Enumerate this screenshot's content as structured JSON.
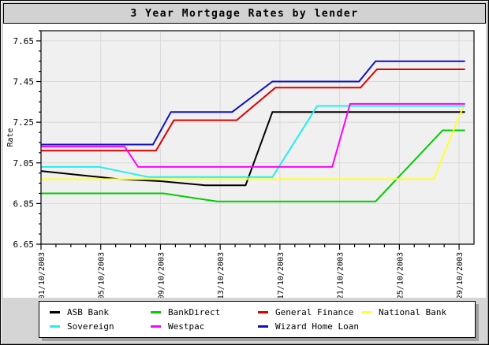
{
  "window": {
    "title": "3 Year Mortgage Rates by lender"
  },
  "chart_data": {
    "type": "line",
    "title": "3 Year Mortgage Rates by lender",
    "xlabel": "",
    "ylabel": "Rate",
    "ylim": [
      6.65,
      7.7
    ],
    "xlim": [
      1,
      30
    ],
    "yticks": [
      6.65,
      6.85,
      7.05,
      7.25,
      7.45,
      7.65
    ],
    "ytick_labels": [
      "6.65",
      "6.85",
      "7.05",
      "7.25",
      "7.45",
      "7.65"
    ],
    "xticks": [
      1,
      5,
      9,
      13,
      17,
      21,
      25,
      29
    ],
    "xtick_labels": [
      "01/10/2003",
      "05/10/2003",
      "09/10/2003",
      "13/10/2003",
      "17/10/2003",
      "21/10/2003",
      "25/10/2003",
      "29/10/2003"
    ],
    "x_minor_step": 1,
    "y_minor_step": 0.05,
    "grid": "major",
    "legend_position": "bottom",
    "plot_bg": "#f0f0f0",
    "grid_color": "#dadada",
    "axis_color": "#000000",
    "series": [
      {
        "name": "ASB Bank",
        "color": "#000000",
        "points": [
          [
            1,
            7.01
          ],
          [
            3.6,
            6.99
          ],
          [
            6.2,
            6.97
          ],
          [
            9,
            6.96
          ],
          [
            12,
            6.94
          ],
          [
            14.7,
            6.94
          ],
          [
            16.5,
            7.3
          ],
          [
            29.4,
            7.3
          ]
        ]
      },
      {
        "name": "BankDirect",
        "color": "#00cc00",
        "points": [
          [
            1,
            6.9
          ],
          [
            9.2,
            6.9
          ],
          [
            12.8,
            6.86
          ],
          [
            23.4,
            6.86
          ],
          [
            27.9,
            7.21
          ],
          [
            29.4,
            7.21
          ]
        ]
      },
      {
        "name": "General Finance",
        "color": "#dd0000",
        "points": [
          [
            1,
            7.11
          ],
          [
            8.7,
            7.11
          ],
          [
            9.9,
            7.26
          ],
          [
            14.1,
            7.26
          ],
          [
            16.7,
            7.42
          ],
          [
            22.4,
            7.42
          ],
          [
            23.5,
            7.51
          ],
          [
            29.4,
            7.51
          ]
        ]
      },
      {
        "name": "National Bank",
        "color": "#ffff33",
        "points": [
          [
            1,
            6.97
          ],
          [
            27.3,
            6.97
          ],
          [
            29.3,
            7.33
          ],
          [
            29.4,
            7.33
          ]
        ]
      },
      {
        "name": "Sovereign",
        "color": "#22eeee",
        "points": [
          [
            1,
            7.03
          ],
          [
            4.9,
            7.03
          ],
          [
            8.2,
            6.98
          ],
          [
            16.5,
            6.98
          ],
          [
            19.5,
            7.33
          ],
          [
            29.4,
            7.33
          ]
        ]
      },
      {
        "name": "Westpac",
        "color": "#ff00ff",
        "points": [
          [
            1,
            7.13
          ],
          [
            6.6,
            7.13
          ],
          [
            7.5,
            7.03
          ],
          [
            20.5,
            7.03
          ],
          [
            21.7,
            7.34
          ],
          [
            29.4,
            7.34
          ]
        ]
      },
      {
        "name": "Wizard Home Loan",
        "color": "#1111bb",
        "points": [
          [
            1,
            7.14
          ],
          [
            8.5,
            7.14
          ],
          [
            9.7,
            7.3
          ],
          [
            13.8,
            7.3
          ],
          [
            16.5,
            7.45
          ],
          [
            22.3,
            7.45
          ],
          [
            23.4,
            7.55
          ],
          [
            29.4,
            7.55
          ]
        ]
      }
    ],
    "legend_rows": [
      [
        "ASB Bank",
        "BankDirect",
        "General Finance",
        "National Bank"
      ],
      [
        "Sovereign",
        "Westpac",
        "Wizard Home Loan"
      ]
    ]
  }
}
